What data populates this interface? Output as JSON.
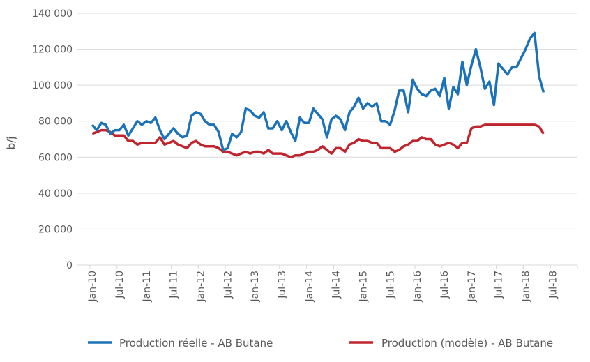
{
  "chart_data": {
    "type": "line",
    "title": "",
    "xlabel": "",
    "ylabel": "b/j",
    "ylim": [
      0,
      140000
    ],
    "yticks": [
      0,
      20000,
      40000,
      60000,
      80000,
      100000,
      120000,
      140000
    ],
    "ytick_labels": [
      "0",
      "20 000",
      "40 000",
      "60 000",
      "80 000",
      "100 000",
      "120 000",
      "140 000"
    ],
    "xtick_labels": [
      "Jan-10",
      "Jul-10",
      "Jan-11",
      "Jul-11",
      "Jan-12",
      "Jul-12",
      "Jan-13",
      "Jul-13",
      "Jan-14",
      "Jul-14",
      "Jan-15",
      "Jul-15",
      "Jan-16",
      "Jul-16",
      "Jan-17",
      "Jul-17",
      "Jan-18",
      "Jul-18"
    ],
    "x_start": "Jan-10",
    "x_frequency": "monthly",
    "grid": "horizontal",
    "legend_position": "bottom",
    "series": [
      {
        "name": "Production réelle - AB Butane",
        "color": "#1b72b9",
        "values": [
          78000,
          75000,
          79000,
          78000,
          73000,
          75000,
          75000,
          78000,
          72000,
          76000,
          80000,
          78000,
          80000,
          79000,
          82000,
          75000,
          70000,
          73000,
          76000,
          73000,
          71000,
          72000,
          83000,
          85000,
          84000,
          80000,
          78000,
          78000,
          74000,
          64000,
          65000,
          73000,
          71000,
          74000,
          87000,
          86000,
          83000,
          82000,
          85000,
          76000,
          76000,
          80000,
          75000,
          80000,
          74000,
          69000,
          82000,
          79000,
          79000,
          87000,
          84000,
          81000,
          71000,
          81000,
          83000,
          81000,
          75000,
          85000,
          88000,
          93000,
          87000,
          90000,
          88000,
          90000,
          80000,
          80000,
          78000,
          86000,
          97000,
          97000,
          85000,
          103000,
          98000,
          95000,
          94000,
          97000,
          98000,
          94000,
          104000,
          87000,
          99000,
          95000,
          113000,
          100000,
          111000,
          120000,
          110000,
          98000,
          102000,
          89000,
          112000,
          109000,
          106000,
          110000,
          110000,
          115000,
          120000,
          126000,
          129000,
          105000,
          96000
        ]
      },
      {
        "name": "Production (modèle) - AB Butane",
        "color": "#c0242c",
        "values": [
          73000,
          74000,
          75000,
          75000,
          74000,
          72000,
          72000,
          72000,
          69000,
          69000,
          67000,
          68000,
          68000,
          68000,
          68000,
          71000,
          67000,
          68000,
          69000,
          67000,
          66000,
          65000,
          68000,
          69000,
          67000,
          66000,
          66000,
          66000,
          65000,
          63000,
          63000,
          62000,
          61000,
          62000,
          63000,
          62000,
          63000,
          63000,
          62000,
          64000,
          62000,
          62000,
          62000,
          61000,
          60000,
          61000,
          61000,
          62000,
          63000,
          63000,
          64000,
          66000,
          64000,
          62000,
          65000,
          65000,
          63000,
          67000,
          68000,
          70000,
          69000,
          69000,
          68000,
          68000,
          65000,
          65000,
          65000,
          63000,
          64000,
          66000,
          67000,
          69000,
          69000,
          71000,
          70000,
          70000,
          67000,
          66000,
          67000,
          68000,
          67000,
          65000,
          68000,
          68000,
          76000,
          77000,
          77000,
          78000,
          78000,
          78000,
          78000,
          78000,
          78000,
          78000,
          78000,
          78000,
          78000,
          78000,
          78000,
          77000,
          73000
        ]
      }
    ]
  }
}
